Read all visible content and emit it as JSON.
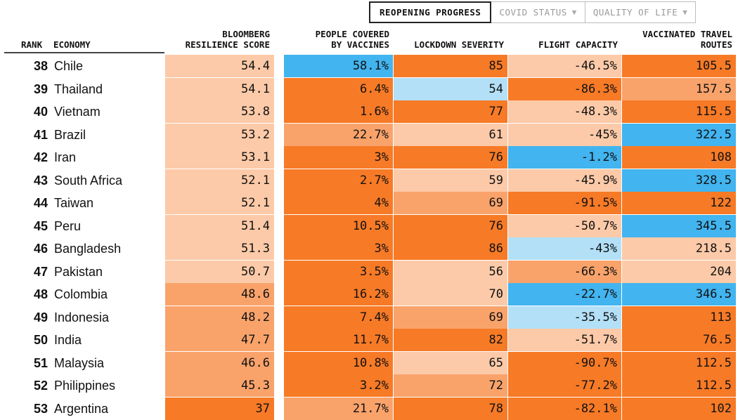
{
  "tabs": [
    {
      "label": "REOPENING PROGRESS",
      "caret": ""
    },
    {
      "label": "COVID STATUS",
      "caret": "▼"
    },
    {
      "label": "QUALITY OF LIFE",
      "caret": "▼"
    }
  ],
  "headers": {
    "rank": "RANK",
    "economy": "ECONOMY",
    "score_l1": "BLOOMBERG",
    "score_l2": "RESILIENCE SCORE",
    "vacc_l1": "PEOPLE COVERED",
    "vacc_l2": "BY VACCINES",
    "lockdown": "LOCKDOWN SEVERITY",
    "flight": "FLIGHT CAPACITY",
    "routes_l1": "VACCINATED TRAVEL",
    "routes_l2": "ROUTES"
  },
  "colors": {
    "dark_orange": "#f77a26",
    "mid_orange": "#f9a36b",
    "light_peach": "#fccaa8",
    "light_blue": "#b3e0f7",
    "bright_blue": "#42b4ef"
  },
  "rows": [
    {
      "rank": "38",
      "economy": "Chile",
      "score": "54.4",
      "vaccines": "58.1%",
      "lockdown": "85",
      "flight": "-46.5%",
      "routes": "105.5",
      "c": [
        "light_peach",
        "bright_blue",
        "dark_orange",
        "light_peach",
        "dark_orange"
      ]
    },
    {
      "rank": "39",
      "economy": "Thailand",
      "score": "54.1",
      "vaccines": "6.4%",
      "lockdown": "54",
      "flight": "-86.3%",
      "routes": "157.5",
      "c": [
        "light_peach",
        "dark_orange",
        "light_blue",
        "dark_orange",
        "mid_orange"
      ]
    },
    {
      "rank": "40",
      "economy": "Vietnam",
      "score": "53.8",
      "vaccines": "1.6%",
      "lockdown": "77",
      "flight": "-48.3%",
      "routes": "115.5",
      "c": [
        "light_peach",
        "dark_orange",
        "dark_orange",
        "light_peach",
        "dark_orange"
      ]
    },
    {
      "rank": "41",
      "economy": "Brazil",
      "score": "53.2",
      "vaccines": "22.7%",
      "lockdown": "61",
      "flight": "-45%",
      "routes": "322.5",
      "c": [
        "light_peach",
        "mid_orange",
        "light_peach",
        "light_peach",
        "bright_blue"
      ]
    },
    {
      "rank": "42",
      "economy": "Iran",
      "score": "53.1",
      "vaccines": "3%",
      "lockdown": "76",
      "flight": "-1.2%",
      "routes": "108",
      "c": [
        "light_peach",
        "dark_orange",
        "dark_orange",
        "bright_blue",
        "dark_orange"
      ]
    },
    {
      "rank": "43",
      "economy": "South Africa",
      "score": "52.1",
      "vaccines": "2.7%",
      "lockdown": "59",
      "flight": "-45.9%",
      "routes": "328.5",
      "c": [
        "light_peach",
        "dark_orange",
        "light_peach",
        "light_peach",
        "bright_blue"
      ]
    },
    {
      "rank": "44",
      "economy": "Taiwan",
      "score": "52.1",
      "vaccines": "4%",
      "lockdown": "69",
      "flight": "-91.5%",
      "routes": "122",
      "c": [
        "light_peach",
        "dark_orange",
        "mid_orange",
        "dark_orange",
        "dark_orange"
      ]
    },
    {
      "rank": "45",
      "economy": "Peru",
      "score": "51.4",
      "vaccines": "10.5%",
      "lockdown": "76",
      "flight": "-50.7%",
      "routes": "345.5",
      "c": [
        "light_peach",
        "dark_orange",
        "dark_orange",
        "light_peach",
        "bright_blue"
      ]
    },
    {
      "rank": "46",
      "economy": "Bangladesh",
      "score": "51.3",
      "vaccines": "3%",
      "lockdown": "86",
      "flight": "-43%",
      "routes": "218.5",
      "c": [
        "light_peach",
        "dark_orange",
        "dark_orange",
        "light_blue",
        "light_peach"
      ]
    },
    {
      "rank": "47",
      "economy": "Pakistan",
      "score": "50.7",
      "vaccines": "3.5%",
      "lockdown": "56",
      "flight": "-66.3%",
      "routes": "204",
      "c": [
        "light_peach",
        "dark_orange",
        "light_peach",
        "mid_orange",
        "light_peach"
      ]
    },
    {
      "rank": "48",
      "economy": "Colombia",
      "score": "48.6",
      "vaccines": "16.2%",
      "lockdown": "70",
      "flight": "-22.7%",
      "routes": "346.5",
      "c": [
        "mid_orange",
        "dark_orange",
        "light_peach",
        "bright_blue",
        "bright_blue"
      ]
    },
    {
      "rank": "49",
      "economy": "Indonesia",
      "score": "48.2",
      "vaccines": "7.4%",
      "lockdown": "69",
      "flight": "-35.5%",
      "routes": "113",
      "c": [
        "mid_orange",
        "dark_orange",
        "mid_orange",
        "light_blue",
        "dark_orange"
      ]
    },
    {
      "rank": "50",
      "economy": "India",
      "score": "47.7",
      "vaccines": "11.7%",
      "lockdown": "82",
      "flight": "-51.7%",
      "routes": "76.5",
      "c": [
        "mid_orange",
        "dark_orange",
        "dark_orange",
        "light_peach",
        "dark_orange"
      ]
    },
    {
      "rank": "51",
      "economy": "Malaysia",
      "score": "46.6",
      "vaccines": "10.8%",
      "lockdown": "65",
      "flight": "-90.7%",
      "routes": "112.5",
      "c": [
        "mid_orange",
        "dark_orange",
        "light_peach",
        "dark_orange",
        "dark_orange"
      ]
    },
    {
      "rank": "52",
      "economy": "Philippines",
      "score": "45.3",
      "vaccines": "3.2%",
      "lockdown": "72",
      "flight": "-77.2%",
      "routes": "112.5",
      "c": [
        "mid_orange",
        "dark_orange",
        "mid_orange",
        "dark_orange",
        "dark_orange"
      ]
    },
    {
      "rank": "53",
      "economy": "Argentina",
      "score": "37",
      "vaccines": "21.7%",
      "lockdown": "78",
      "flight": "-82.1%",
      "routes": "102",
      "c": [
        "dark_orange",
        "mid_orange",
        "dark_orange",
        "dark_orange",
        "dark_orange"
      ]
    }
  ]
}
